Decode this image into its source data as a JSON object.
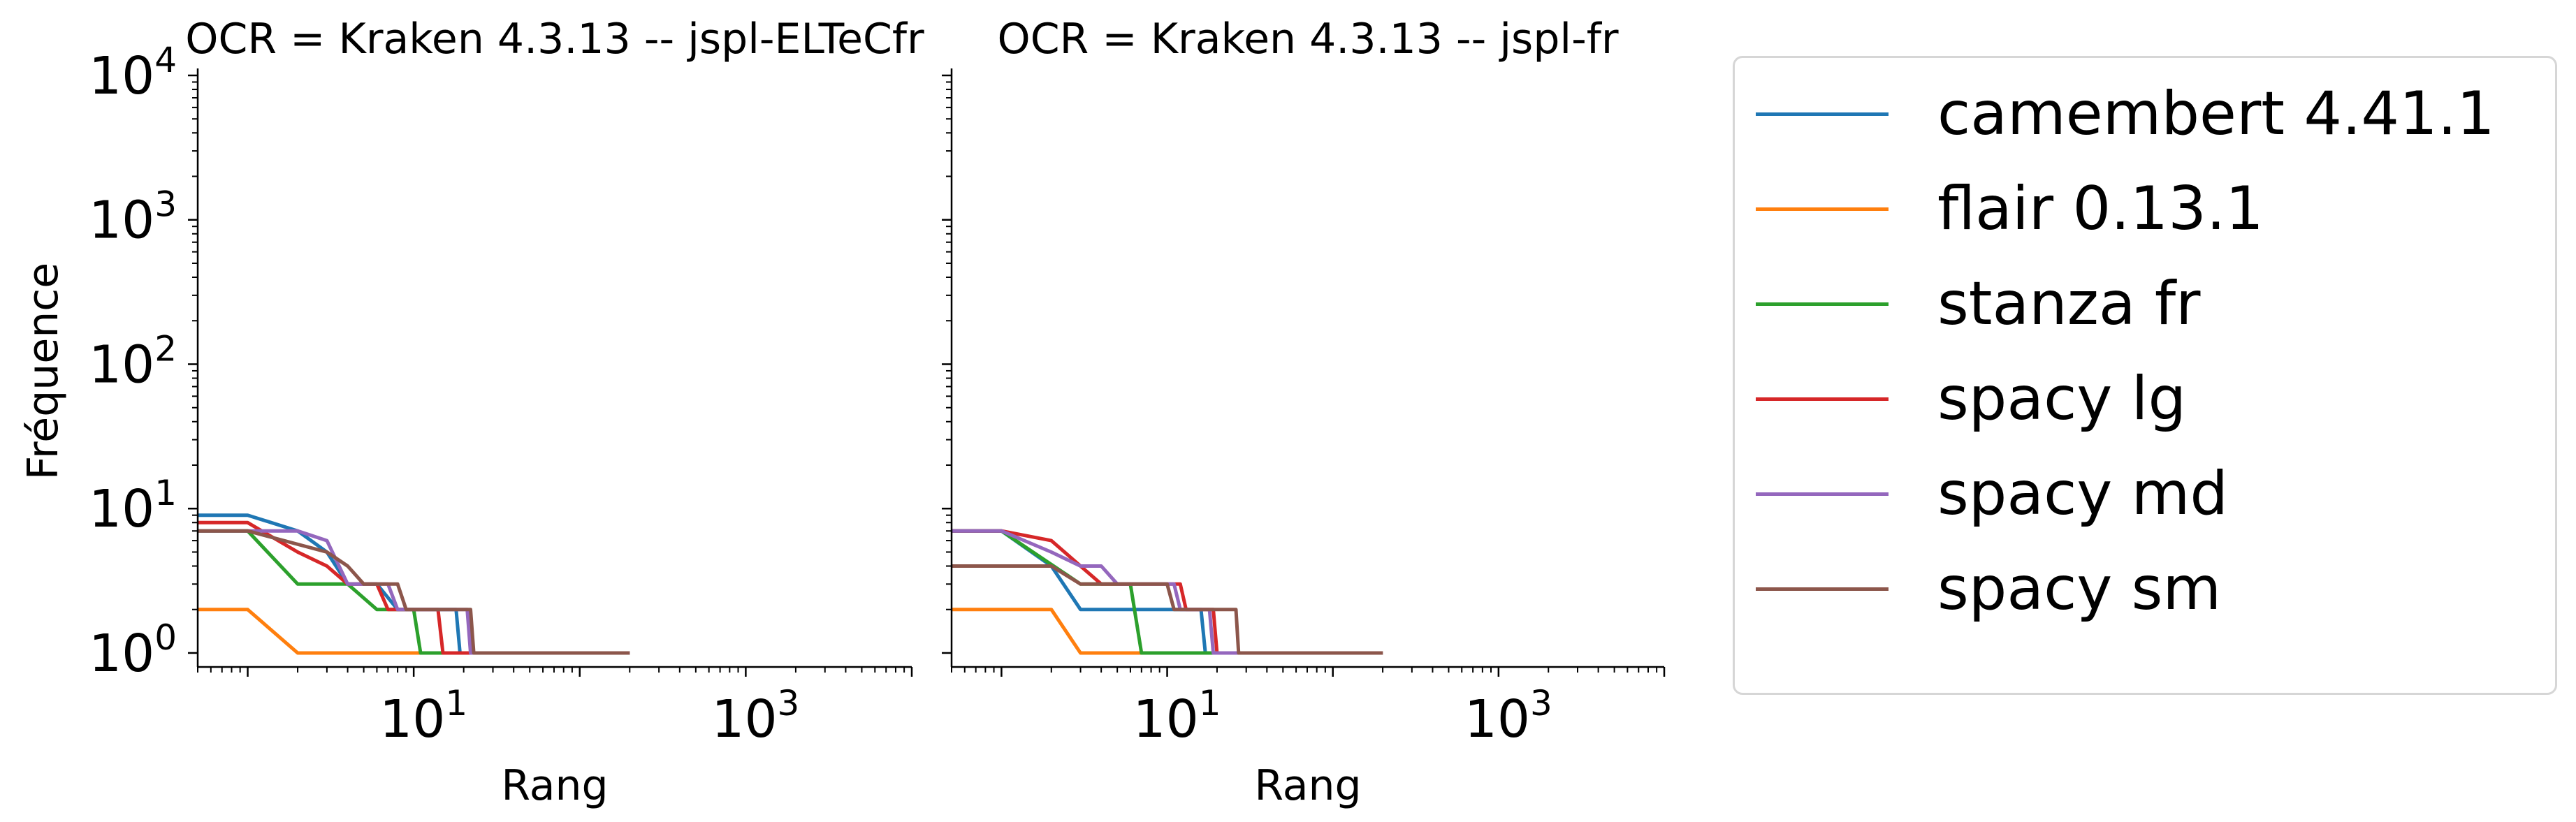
{
  "chart_data": [
    {
      "type": "line",
      "title": "OCR = Kraken 4.3.13 -- jspl-ELTeCfr",
      "xlabel": "Rang",
      "ylabel": "Fréquence",
      "xscale": "log",
      "yscale": "log",
      "xlim": [
        0.5,
        10000
      ],
      "ylim": [
        0.8,
        10000
      ],
      "xticks": [
        {
          "value": 10,
          "label": "10^1"
        },
        {
          "value": 1000,
          "label": "10^3"
        }
      ],
      "yticks": [
        {
          "value": 1,
          "label": "10^0"
        },
        {
          "value": 10,
          "label": "10^1"
        },
        {
          "value": 100,
          "label": "10^2"
        },
        {
          "value": 1000,
          "label": "10^3"
        },
        {
          "value": 10000,
          "label": "10^4"
        }
      ],
      "series": [
        {
          "name": "camembert 4.41.1",
          "color": "#1f77b4",
          "points": [
            [
              0.5,
              9
            ],
            [
              1,
              9
            ],
            [
              2,
              7
            ],
            [
              3,
              5
            ],
            [
              4,
              3
            ],
            [
              6,
              3
            ],
            [
              8,
              2
            ],
            [
              18,
              2
            ],
            [
              19,
              1
            ],
            [
              200,
              1
            ]
          ]
        },
        {
          "name": "flair 0.13.1",
          "color": "#ff7f0e",
          "points": [
            [
              0.5,
              2
            ],
            [
              1,
              2
            ],
            [
              2,
              1
            ],
            [
              200,
              1
            ]
          ]
        },
        {
          "name": "stanza fr",
          "color": "#2ca02c",
          "points": [
            [
              0.5,
              7
            ],
            [
              1,
              7
            ],
            [
              2,
              3
            ],
            [
              4,
              3
            ],
            [
              6,
              2
            ],
            [
              10,
              2
            ],
            [
              11,
              1
            ],
            [
              200,
              1
            ]
          ]
        },
        {
          "name": "spacy lg",
          "color": "#d62728",
          "points": [
            [
              0.5,
              8
            ],
            [
              1,
              8
            ],
            [
              2,
              5
            ],
            [
              3,
              4
            ],
            [
              4,
              3
            ],
            [
              6,
              3
            ],
            [
              7,
              2
            ],
            [
              14,
              2
            ],
            [
              15,
              1
            ],
            [
              200,
              1
            ]
          ]
        },
        {
          "name": "spacy md",
          "color": "#9467bd",
          "points": [
            [
              0.5,
              7
            ],
            [
              2,
              7
            ],
            [
              3,
              6
            ],
            [
              4,
              3
            ],
            [
              7,
              3
            ],
            [
              8,
              2
            ],
            [
              21,
              2
            ],
            [
              22,
              1
            ],
            [
              200,
              1
            ]
          ]
        },
        {
          "name": "spacy sm",
          "color": "#8c564b",
          "points": [
            [
              0.5,
              7
            ],
            [
              1,
              7
            ],
            [
              3,
              5
            ],
            [
              4,
              4
            ],
            [
              5,
              3
            ],
            [
              8,
              3
            ],
            [
              9,
              2
            ],
            [
              22,
              2
            ],
            [
              23,
              1
            ],
            [
              200,
              1
            ]
          ]
        }
      ]
    },
    {
      "type": "line",
      "title": "OCR = Kraken 4.3.13 -- jspl-fr",
      "xlabel": "Rang",
      "ylabel": "",
      "xscale": "log",
      "yscale": "log",
      "xlim": [
        0.5,
        10000
      ],
      "ylim": [
        0.8,
        10000
      ],
      "xticks": [
        {
          "value": 10,
          "label": "10^1"
        },
        {
          "value": 1000,
          "label": "10^3"
        }
      ],
      "yticks": [],
      "series": [
        {
          "name": "camembert 4.41.1",
          "color": "#1f77b4",
          "points": [
            [
              0.5,
              7
            ],
            [
              1,
              7
            ],
            [
              2,
              4
            ],
            [
              3,
              2
            ],
            [
              5,
              2
            ],
            [
              6,
              2
            ],
            [
              16,
              2
            ],
            [
              17,
              1
            ],
            [
              200,
              1
            ]
          ]
        },
        {
          "name": "flair 0.13.1",
          "color": "#ff7f0e",
          "points": [
            [
              0.5,
              2
            ],
            [
              2,
              2
            ],
            [
              3,
              1
            ],
            [
              200,
              1
            ]
          ]
        },
        {
          "name": "stanza fr",
          "color": "#2ca02c",
          "points": [
            [
              0.5,
              7
            ],
            [
              1,
              7
            ],
            [
              3,
              3
            ],
            [
              6,
              3
            ],
            [
              7,
              1
            ],
            [
              200,
              1
            ]
          ]
        },
        {
          "name": "spacy lg",
          "color": "#d62728",
          "points": [
            [
              0.5,
              7
            ],
            [
              1,
              7
            ],
            [
              2,
              6
            ],
            [
              3,
              4
            ],
            [
              4,
              3
            ],
            [
              12,
              3
            ],
            [
              13,
              2
            ],
            [
              19,
              2
            ],
            [
              20,
              1
            ],
            [
              200,
              1
            ]
          ]
        },
        {
          "name": "spacy md",
          "color": "#9467bd",
          "points": [
            [
              0.5,
              7
            ],
            [
              1,
              7
            ],
            [
              2,
              5
            ],
            [
              3,
              4
            ],
            [
              4,
              4
            ],
            [
              5,
              3
            ],
            [
              11,
              3
            ],
            [
              12,
              2
            ],
            [
              18,
              2
            ],
            [
              19,
              1
            ],
            [
              200,
              1
            ]
          ]
        },
        {
          "name": "spacy sm",
          "color": "#8c564b",
          "points": [
            [
              0.5,
              4
            ],
            [
              2,
              4
            ],
            [
              3,
              3
            ],
            [
              10,
              3
            ],
            [
              11,
              2
            ],
            [
              26,
              2
            ],
            [
              27,
              1
            ],
            [
              200,
              1
            ]
          ]
        }
      ]
    }
  ],
  "legend": {
    "position": "right",
    "items": [
      {
        "label": "camembert 4.41.1",
        "color": "#1f77b4"
      },
      {
        "label": "flair 0.13.1",
        "color": "#ff7f0e"
      },
      {
        "label": "stanza fr",
        "color": "#2ca02c"
      },
      {
        "label": "spacy lg",
        "color": "#d62728"
      },
      {
        "label": "spacy md",
        "color": "#9467bd"
      },
      {
        "label": "spacy sm",
        "color": "#8c564b"
      }
    ]
  }
}
